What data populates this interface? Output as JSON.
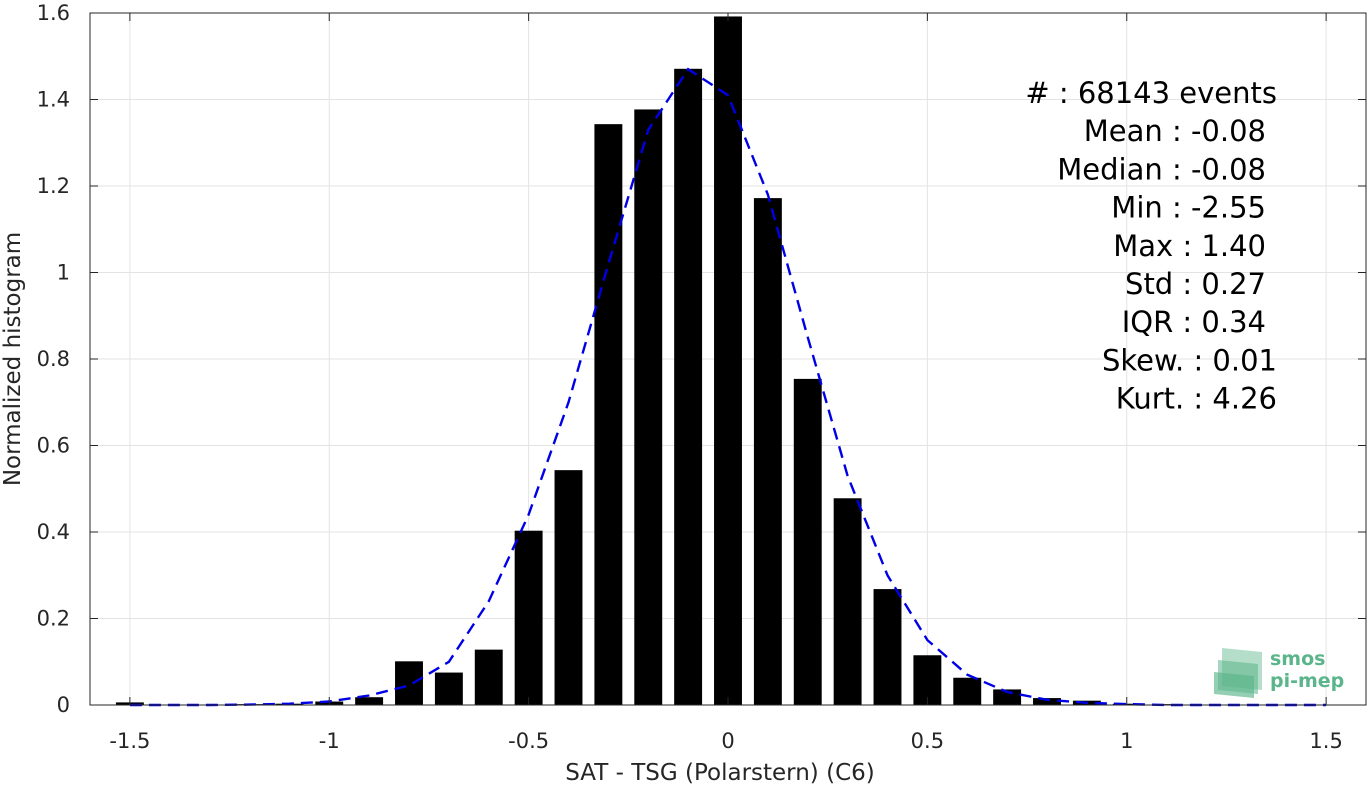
{
  "chart_data": {
    "type": "bar",
    "xlabel": "SAT - TSG (Polarstern) (C6)",
    "ylabel": "Normalized histogram",
    "xlim": [
      -1.6,
      1.6
    ],
    "ylim": [
      0,
      1.6
    ],
    "grid": true,
    "xticks": [
      -1.5,
      -1,
      -0.5,
      0,
      0.5,
      1,
      1.5
    ],
    "xtick_labels": [
      "-1.5",
      "-1",
      "-0.5",
      "0",
      "0.5",
      "1",
      "1.5"
    ],
    "yticks": [
      0,
      0.2,
      0.4,
      0.6,
      0.8,
      1,
      1.2,
      1.4,
      1.6
    ],
    "ytick_labels": [
      "0",
      "0.2",
      "0.4",
      "0.6",
      "0.8",
      "1",
      "1.2",
      "1.4",
      "1.6"
    ],
    "bar_width": 0.07,
    "bar_color": "#000000",
    "bars": {
      "x": [
        -1.5,
        -1.2,
        -1.1,
        -1.0,
        -0.9,
        -0.8,
        -0.7,
        -0.6,
        -0.5,
        -0.4,
        -0.3,
        -0.2,
        -0.1,
        0.0,
        0.1,
        0.2,
        0.3,
        0.4,
        0.5,
        0.6,
        0.7,
        0.8,
        0.9,
        1.0,
        1.1,
        1.2
      ],
      "values": [
        0.006,
        0.002,
        0.003,
        0.008,
        0.018,
        0.101,
        0.075,
        0.128,
        0.403,
        0.543,
        1.343,
        1.377,
        1.471,
        1.592,
        1.172,
        0.754,
        0.478,
        0.268,
        0.115,
        0.063,
        0.036,
        0.016,
        0.01,
        0.003,
        0.002,
        0.001
      ]
    },
    "fit_curve": {
      "style": "dashed",
      "color": "#0000e6",
      "x": [
        -1.5,
        -1.4,
        -1.3,
        -1.2,
        -1.1,
        -1.0,
        -0.9,
        -0.8,
        -0.7,
        -0.6,
        -0.5,
        -0.4,
        -0.3,
        -0.2,
        -0.1,
        0.0,
        0.1,
        0.2,
        0.3,
        0.4,
        0.5,
        0.6,
        0.7,
        0.8,
        0.9,
        1.0,
        1.1,
        1.2,
        1.3,
        1.4,
        1.5
      ],
      "values": [
        0.0,
        0.0,
        0.0,
        0.001,
        0.003,
        0.008,
        0.022,
        0.045,
        0.1,
        0.24,
        0.44,
        0.7,
        1.02,
        1.33,
        1.47,
        1.41,
        1.18,
        0.85,
        0.53,
        0.3,
        0.15,
        0.07,
        0.03,
        0.012,
        0.005,
        0.002,
        0.0,
        0.0,
        0.0,
        0.0,
        0.0
      ]
    },
    "annotations": [
      "#  : 68143 events",
      "Mean : -0.08",
      "Median : -0.08",
      "Min : -2.55",
      "Max : 1.40",
      "Std : 0.27",
      "IQR : 0.34",
      "Skew. : 0.01",
      "Kurt. : 4.26"
    ]
  },
  "logo": {
    "line1": "smos",
    "line2": "pi-mep",
    "color": "#5bb58a"
  }
}
